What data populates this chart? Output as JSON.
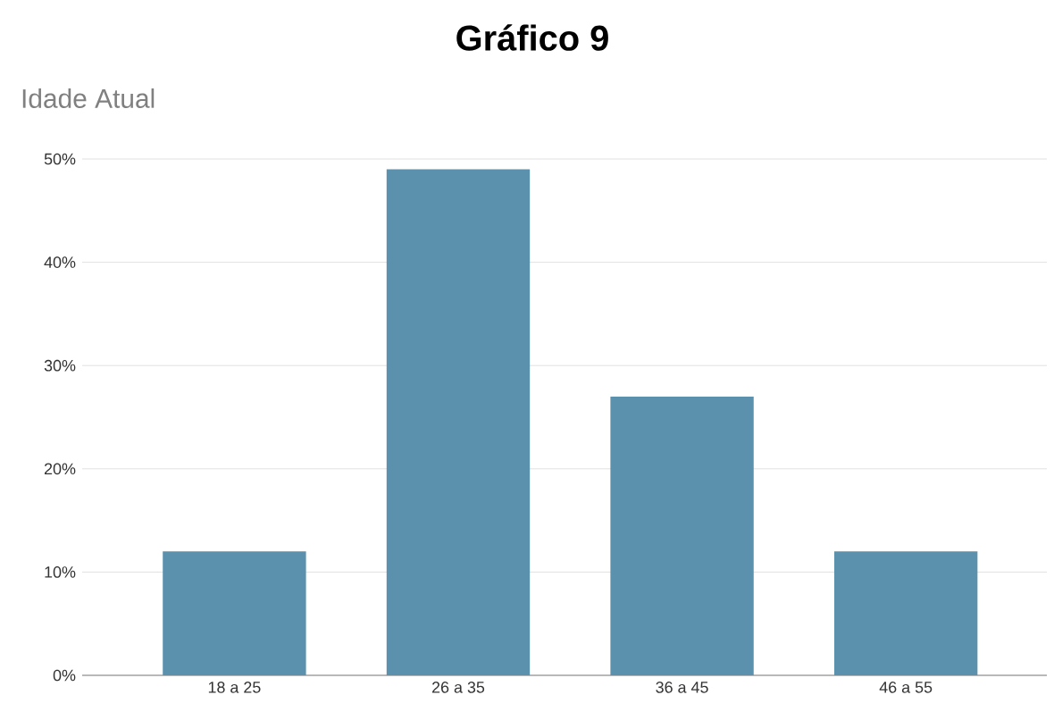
{
  "chart_data": {
    "type": "bar",
    "title": "Gráfico 9",
    "subtitle": "Idade Atual",
    "categories": [
      "18 a 25",
      "26 a 35",
      "36 a 45",
      "46 a 55"
    ],
    "values": [
      12,
      49,
      27,
      12
    ],
    "color": "#5b91ad",
    "ylim": [
      0,
      50
    ],
    "yticks": [
      {
        "value": 0,
        "label": "0%"
      },
      {
        "value": 10,
        "label": "10%"
      },
      {
        "value": 20,
        "label": "20%"
      },
      {
        "value": 30,
        "label": "30%"
      },
      {
        "value": 40,
        "label": "40%"
      },
      {
        "value": 50,
        "label": "50%"
      }
    ],
    "grid": "y"
  }
}
